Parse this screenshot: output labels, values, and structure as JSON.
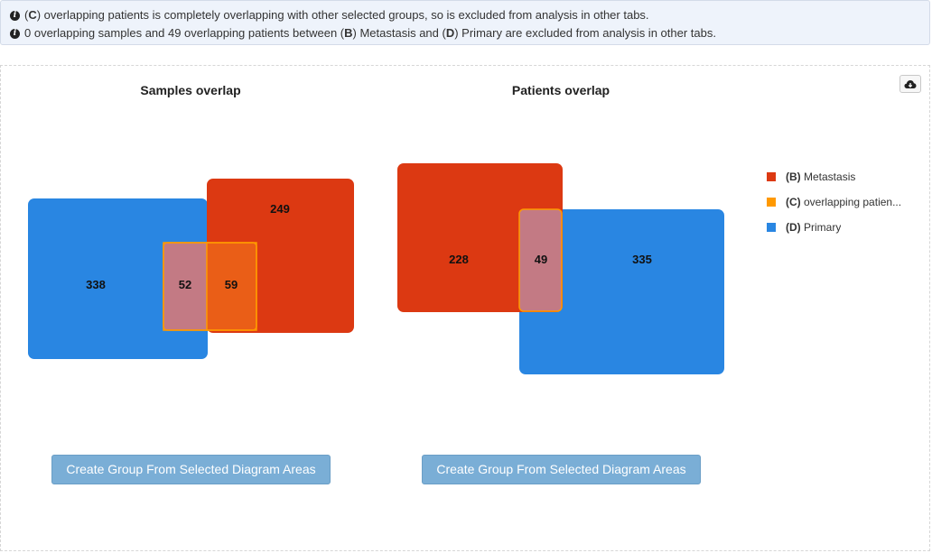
{
  "info": {
    "line1": {
      "prefix": "(",
      "group": "C",
      "suffix": ") overlapping patients is completely overlapping with other selected groups, so is excluded from analysis in other tabs."
    },
    "line2": {
      "prefix": "0 overlapping samples and 49 overlapping patients between (",
      "group1": "B",
      "middle": ") Metastasis and (",
      "group2": "D",
      "suffix": ") Primary are excluded from analysis in other tabs."
    }
  },
  "charts": {
    "samples": {
      "title": "Samples overlap",
      "values": {
        "primary_only": "338",
        "primary_overlap": "52",
        "metastasis_overlap": "59",
        "metastasis_only": "249"
      },
      "button_label": "Create Group From Selected Diagram Areas"
    },
    "patients": {
      "title": "Patients overlap",
      "values": {
        "metastasis_only": "228",
        "overlap": "49",
        "primary_only": "335"
      },
      "button_label": "Create Group From Selected Diagram Areas"
    }
  },
  "legend": [
    {
      "letter": "(B)",
      "label": " Metastasis",
      "color": "#dc3912"
    },
    {
      "letter": "(C)",
      "label": " overlapping patien...",
      "color": "#ff9900"
    },
    {
      "letter": "(D)",
      "label": " Primary",
      "color": "#2986e2"
    }
  ],
  "colors": {
    "metastasis": "#dc3912",
    "overlapping": "#ff9900",
    "primary": "#2986e2"
  },
  "icons": {
    "info": "info-circle-icon",
    "download": "cloud-download-icon"
  }
}
